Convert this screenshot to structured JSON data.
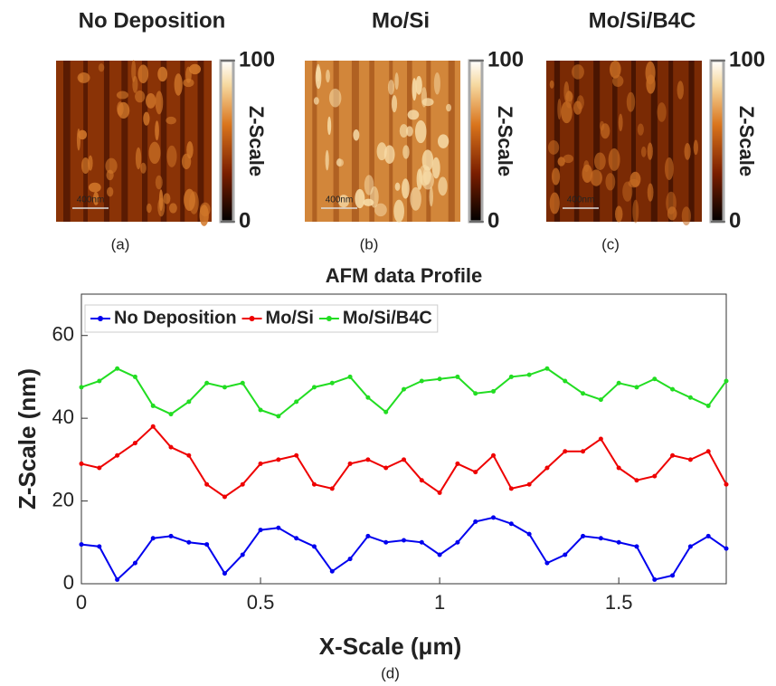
{
  "panels": [
    {
      "title": "No Deposition",
      "caption": "(a)",
      "scale_bar": "400nm",
      "colorbar": {
        "label": "Z-Scale",
        "lim": [
          0,
          100
        ],
        "ticks": [
          0,
          100
        ]
      }
    },
    {
      "title": "Mo/Si",
      "caption": "(b)",
      "scale_bar": "400nm",
      "colorbar": {
        "label": "Z-Scale",
        "lim": [
          0,
          100
        ],
        "ticks": [
          0,
          100
        ]
      }
    },
    {
      "title": "Mo/Si/B4C",
      "caption": "(c)",
      "scale_bar": "400nm",
      "colorbar": {
        "label": "Z-Scale",
        "lim": [
          0,
          100
        ],
        "ticks": [
          0,
          100
        ]
      }
    }
  ],
  "chart_data": {
    "type": "line",
    "title": "AFM data Profile",
    "caption": "(d)",
    "x_label": "X-Scale (μm)",
    "y_label": "Z-Scale (nm)",
    "x": [
      0,
      0.05,
      0.1,
      0.15,
      0.2,
      0.25,
      0.3,
      0.35,
      0.4,
      0.45,
      0.5,
      0.55,
      0.6,
      0.65,
      0.7,
      0.75,
      0.8,
      0.85,
      0.9,
      0.95,
      1,
      1.05,
      1.1,
      1.15,
      1.2,
      1.25,
      1.3,
      1.35,
      1.4,
      1.45,
      1.5,
      1.55,
      1.6,
      1.65,
      1.7,
      1.75,
      1.8
    ],
    "series": [
      {
        "name": "No Deposition",
        "color": "#0000ee",
        "values": [
          9.5,
          9,
          1,
          5,
          11,
          11.5,
          10,
          9.5,
          2.5,
          7,
          13,
          13.5,
          11,
          9,
          3,
          6,
          11.5,
          10,
          10.5,
          10,
          7,
          10,
          15,
          16,
          14.5,
          12,
          5,
          7,
          11.5,
          11,
          10,
          9,
          1,
          2,
          9,
          11.5,
          8.5
        ]
      },
      {
        "name": "Mo/Si",
        "color": "#ee0000",
        "values": [
          29,
          28,
          31,
          34,
          38,
          33,
          31,
          24,
          21,
          24,
          29,
          30,
          31,
          24,
          23,
          29,
          30,
          28,
          30,
          25,
          22,
          29,
          27,
          31,
          23,
          24,
          28,
          32,
          32,
          35,
          28,
          25,
          26,
          31,
          30,
          32,
          24
        ]
      },
      {
        "name": "Mo/Si/B4C",
        "color": "#22dd22",
        "values": [
          47.5,
          49,
          52,
          50,
          43,
          41,
          44,
          48.5,
          47.5,
          48.5,
          42,
          40.5,
          44,
          47.5,
          48.5,
          50,
          45,
          41.5,
          47,
          49,
          49.5,
          50,
          46,
          46.5,
          50,
          50.5,
          52,
          49,
          46,
          44.5,
          48.5,
          47.5,
          49.5,
          47,
          45,
          43,
          49
        ]
      }
    ],
    "xlim": [
      0,
      1.8
    ],
    "xticks": [
      0,
      0.5,
      1,
      1.5
    ],
    "ylim": [
      0,
      70
    ],
    "yticks": [
      0,
      20,
      40,
      60
    ],
    "legend": "upper left"
  }
}
